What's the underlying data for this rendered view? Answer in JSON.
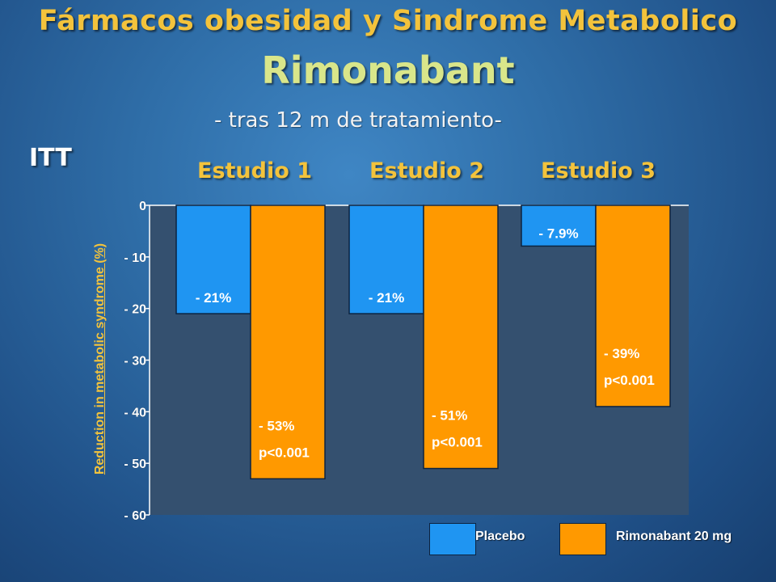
{
  "slide": {
    "title": "Fármacos obesidad y Sindrome Metabolico",
    "subtitle": "Rimonabant",
    "tagline": "- tras 12 m de tratamiento-",
    "population_label": "ITT"
  },
  "colors": {
    "placebo": "#1f95f2",
    "rimonabant": "#ff9900",
    "plot_bg": "#34506f",
    "title": "#f3c33c"
  },
  "chart_data": {
    "type": "bar",
    "categories": [
      "Estudio 1",
      "Estudio 2",
      "Estudio 3"
    ],
    "ylabel": "Reduction in metabolic syndrome (%)",
    "ylim": [
      -60,
      0
    ],
    "yticks": [
      0,
      -10,
      -20,
      -30,
      -40,
      -50,
      -60
    ],
    "ytick_labels": [
      "0",
      "- 10",
      "- 20",
      "- 30",
      "- 40",
      "- 50",
      "- 60"
    ],
    "series": [
      {
        "name": "Placebo",
        "values": [
          -21,
          -21,
          -7.9
        ],
        "labels": [
          "- 21%",
          "- 21%",
          "- 7.9%"
        ],
        "pvalues": [
          "",
          "",
          ""
        ]
      },
      {
        "name": "Rimonabant 20 mg",
        "values": [
          -53,
          -51,
          -39
        ],
        "labels": [
          "- 53%",
          "- 51%",
          "- 39%"
        ],
        "pvalues": [
          "p<0.001",
          "p<0.001",
          "p<0.001"
        ]
      }
    ],
    "legend": {
      "placement": "bottom-right"
    }
  }
}
